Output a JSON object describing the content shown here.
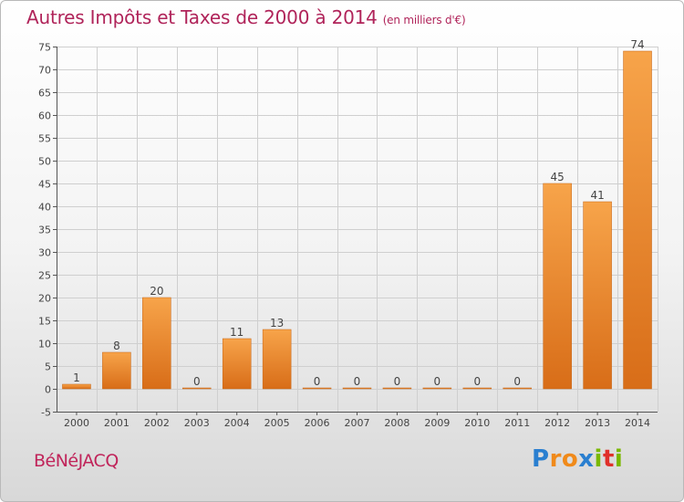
{
  "title": "Autres Impôts et Taxes de 2000 à 2014",
  "subtitle": "(en milliers d'€)",
  "commune": "BéNéJACQ",
  "brand": {
    "letters": [
      "P",
      "r",
      "o",
      "x",
      "i",
      "t",
      "i"
    ],
    "colors": [
      "#2a7fd0",
      "#f08a1a",
      "#f08a1a",
      "#2a7fd0",
      "#7ab800",
      "#e0302a",
      "#7ab800"
    ]
  },
  "colors": {
    "bar_light": "#f7a44a",
    "bar_dark": "#d86d18",
    "grid": "#cfcfcf",
    "axis": "#555555",
    "title": "#b0245a"
  },
  "chart_data": {
    "type": "bar",
    "title": "Autres Impôts et Taxes de 2000 à 2014",
    "subtitle": "(en milliers d'€)",
    "xlabel": "",
    "ylabel": "",
    "categories": [
      "2000",
      "2001",
      "2002",
      "2003",
      "2004",
      "2005",
      "2006",
      "2007",
      "2008",
      "2009",
      "2010",
      "2011",
      "2012",
      "2013",
      "2014"
    ],
    "values": [
      1,
      8,
      20,
      0,
      11,
      13,
      0,
      0,
      0,
      0,
      0,
      0,
      45,
      41,
      74
    ],
    "data_labels": [
      "1",
      "8",
      "20",
      "0",
      "11",
      "13",
      "0",
      "0",
      "0",
      "0",
      "0",
      "0",
      "45",
      "41",
      "74"
    ],
    "ylim": [
      -5,
      75
    ],
    "yticks": [
      "-5",
      "0",
      "5",
      "10",
      "15",
      "20",
      "25",
      "30",
      "35",
      "40",
      "45",
      "50",
      "55",
      "60",
      "65",
      "70",
      "75"
    ],
    "grid": true,
    "legend": "none"
  }
}
